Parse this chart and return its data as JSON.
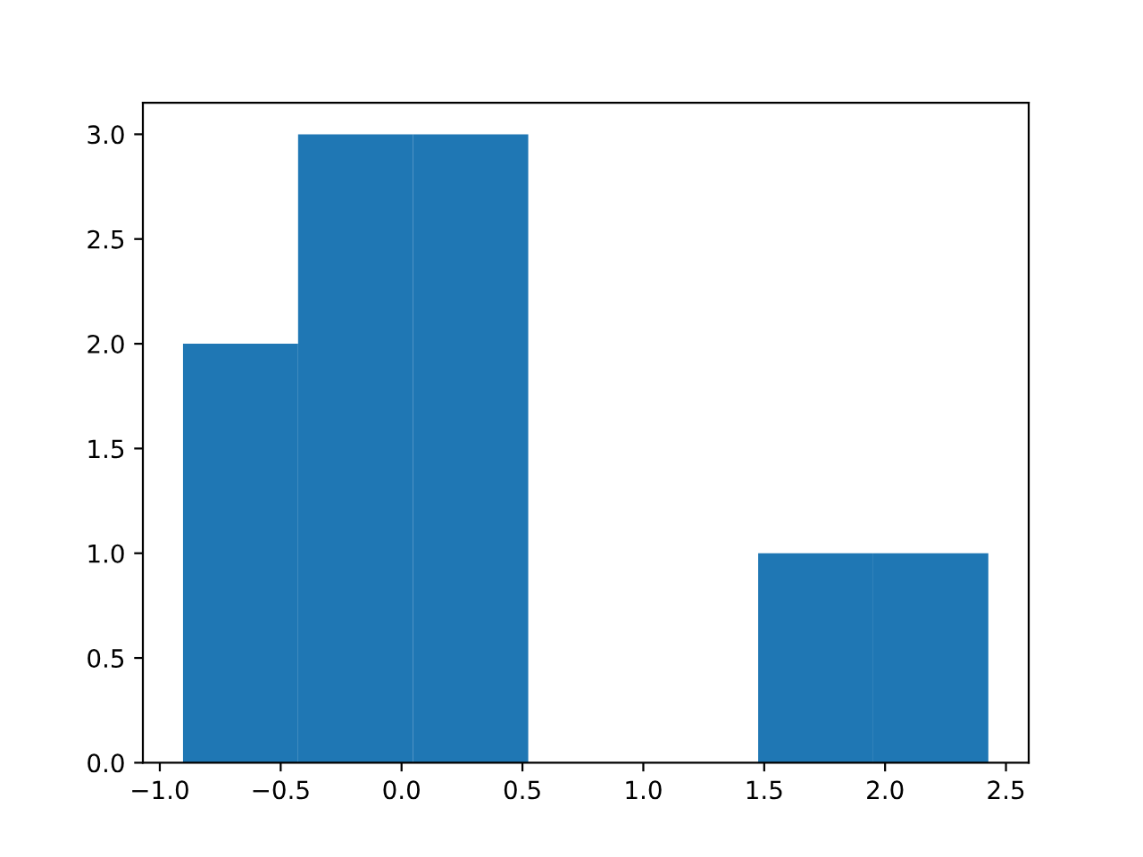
{
  "chart_data": {
    "type": "histogram",
    "bins": [
      -0.904,
      -0.428,
      0.048,
      0.524,
      1.0,
      1.475,
      1.951,
      2.427
    ],
    "values": [
      2,
      3,
      3,
      0,
      0,
      1,
      1
    ],
    "color": "#1f77b4",
    "xlim": [
      -1.07,
      2.594
    ],
    "ylim": [
      0,
      3.15
    ],
    "xticks": [
      {
        "value": -1.0,
        "label": "−1.0"
      },
      {
        "value": -0.5,
        "label": "−0.5"
      },
      {
        "value": 0.0,
        "label": "0.0"
      },
      {
        "value": 0.5,
        "label": "0.5"
      },
      {
        "value": 1.0,
        "label": "1.0"
      },
      {
        "value": 1.5,
        "label": "1.5"
      },
      {
        "value": 2.0,
        "label": "2.0"
      },
      {
        "value": 2.5,
        "label": "2.5"
      }
    ],
    "yticks": [
      {
        "value": 0.0,
        "label": "0.0"
      },
      {
        "value": 0.5,
        "label": "0.5"
      },
      {
        "value": 1.0,
        "label": "1.0"
      },
      {
        "value": 1.5,
        "label": "1.5"
      },
      {
        "value": 2.0,
        "label": "2.0"
      },
      {
        "value": 2.5,
        "label": "2.5"
      },
      {
        "value": 3.0,
        "label": "3.0"
      }
    ],
    "grid": false,
    "legend": false
  }
}
